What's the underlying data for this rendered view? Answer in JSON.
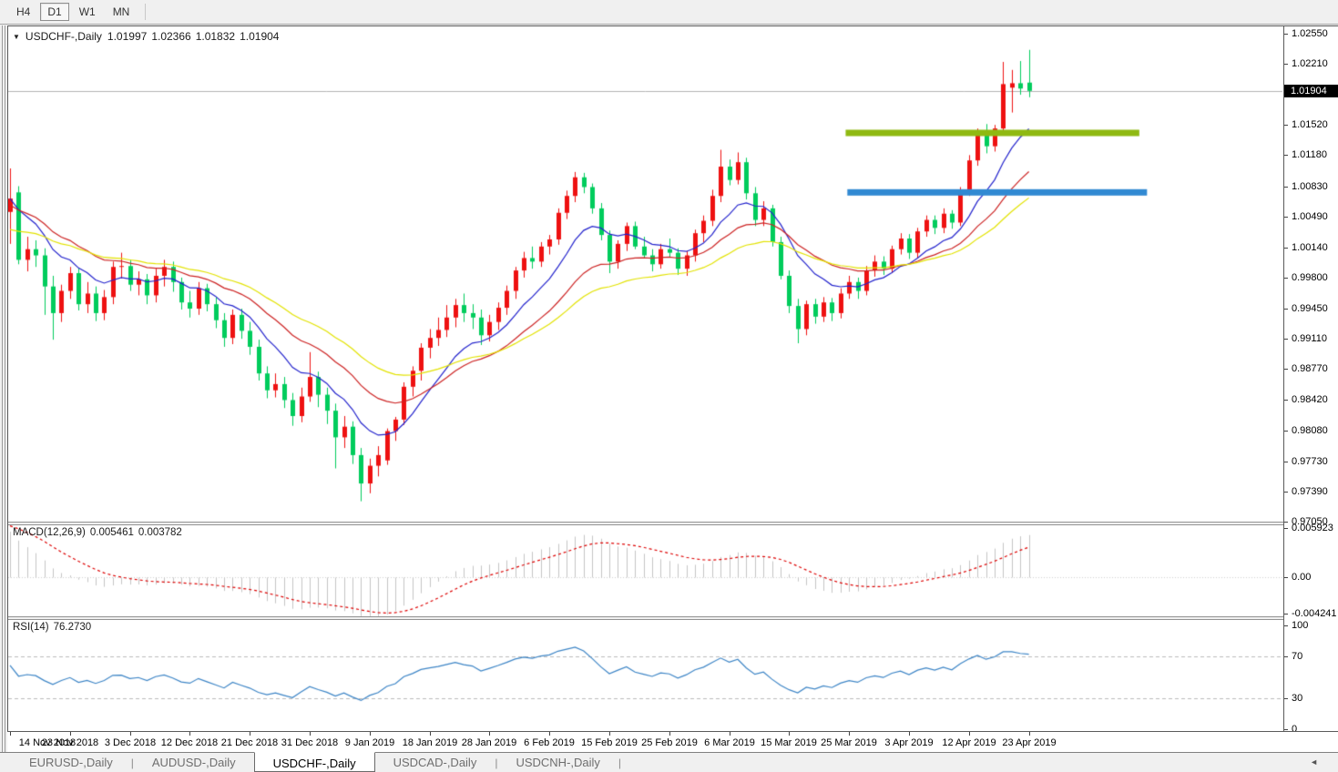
{
  "toolbar": {
    "timeframes": [
      {
        "label": "H4",
        "active": false
      },
      {
        "label": "D1",
        "active": true
      },
      {
        "label": "W1",
        "active": false
      },
      {
        "label": "MN",
        "active": false
      }
    ]
  },
  "icons": {
    "collapse": "▼",
    "tab_scroll_left": "◄"
  },
  "chart_header": {
    "symbol": "USDCHF-,Daily",
    "open": "1.01997",
    "high": "1.02366",
    "low": "1.01832",
    "close": "1.01904"
  },
  "price_axis": {
    "ticks": [
      "1.02550",
      "1.02210",
      "1.01520",
      "1.01180",
      "1.00830",
      "1.00490",
      "1.00140",
      "0.99800",
      "0.99450",
      "0.99110",
      "0.98770",
      "0.98420",
      "0.98080",
      "0.97730",
      "0.97390",
      "0.97050"
    ],
    "current_price": "1.01904"
  },
  "macd_panel": {
    "label": "MACD(12,26,9)",
    "main_value": "0.005461",
    "signal_value": "0.003782",
    "axis": [
      "0.005923",
      "0.00",
      "-0.004241"
    ]
  },
  "rsi_panel": {
    "label": "RSI(14)",
    "value": "76.2730",
    "axis": [
      "100",
      "70",
      "30",
      "0"
    ]
  },
  "date_axis": [
    "14 Nov 2018",
    "23 Nov 2018",
    "3 Dec 2018",
    "12 Dec 2018",
    "21 Dec 2018",
    "31 Dec 2018",
    "9 Jan 2019",
    "18 Jan 2019",
    "28 Jan 2019",
    "6 Feb 2019",
    "15 Feb 2019",
    "25 Feb 2019",
    "6 Mar 2019",
    "15 Mar 2019",
    "25 Mar 2019",
    "3 Apr 2019",
    "12 Apr 2019",
    "23 Apr 2019"
  ],
  "tabs": [
    {
      "label": "EURUSD-,Daily",
      "active": false
    },
    {
      "label": "AUDUSD-,Daily",
      "active": false
    },
    {
      "label": "USDCHF-,Daily",
      "active": true
    },
    {
      "label": "USDCAD-,Daily",
      "active": false
    },
    {
      "label": "USDCNH-,Daily",
      "active": false
    }
  ],
  "colors": {
    "candle_up": "#ee1111",
    "candle_down": "#00cc5c",
    "ma_fast": "#2222cc",
    "ma_mid": "#cc2222",
    "ma_slow": "#e2e200",
    "band_resistance": "#8fb912",
    "band_support": "#3189d2",
    "bid_line": "#b3b3b3",
    "macd_bar": "#c4c4c4",
    "macd_signal": "#dd0000",
    "rsi_line": "#3d85c6",
    "rsi_level": "#bbbbbb",
    "badge_bg": "#000000",
    "badge_text": "#ffffff"
  },
  "chart_data": {
    "type": "candlestick",
    "symbol": "USDCHF",
    "timeframe": "Daily",
    "note_color_convention": "red = up candle, green = down candle",
    "ylim_main": [
      0.9705,
      1.0262
    ],
    "x_tick_every": 7,
    "bid_line_price": 1.01904,
    "hlines": [
      {
        "name": "resistance-line",
        "price": 1.0143,
        "color_key": "band_resistance",
        "from_index": 97.6,
        "to_index": 131.9,
        "thickness": 7
      },
      {
        "name": "support-line",
        "price": 1.0076,
        "color_key": "band_support",
        "from_index": 97.8,
        "to_index": 132.8,
        "thickness": 7
      }
    ],
    "overlays": [
      {
        "name": "ma-fast",
        "method": "ema",
        "period": 10,
        "seed_offset": 0.0,
        "color_key": "ma_fast"
      },
      {
        "name": "ma-mid",
        "method": "ema",
        "period": 21,
        "seed_offset": -0.0008,
        "color_key": "ma_mid"
      },
      {
        "name": "ma-slow",
        "method": "ema",
        "period": 34,
        "seed_offset": -0.0037,
        "color_key": "ma_slow"
      }
    ],
    "macd": {
      "fast": 12,
      "slow": 26,
      "signal": 9,
      "fast_seed_offset": 0.0015,
      "slow_seed_offset": -0.0045,
      "signal_seed": 0.0063,
      "range": [
        -0.0046,
        0.0062
      ],
      "current_main": 0.005461,
      "current_signal": 0.003782
    },
    "rsi": {
      "period": 14,
      "seed_gain": 0.0016,
      "seed_loss": 0.001,
      "levels": [
        70,
        30
      ],
      "range": [
        0,
        100
      ],
      "current": 76.273
    },
    "candles": [
      [
        1.0054,
        1.0103,
        1.0018,
        1.0069
      ],
      [
        1.0076,
        1.0083,
        0.9995,
        1.0
      ],
      [
        1.0,
        1.0026,
        0.9987,
        1.0012
      ],
      [
        1.0012,
        1.0022,
        0.9992,
        1.0005
      ],
      [
        1.0005,
        1.0013,
        0.9938,
        0.997
      ],
      [
        0.997,
        0.9982,
        0.991,
        0.994
      ],
      [
        0.994,
        0.9972,
        0.993,
        0.9965
      ],
      [
        0.9965,
        0.9992,
        0.9956,
        0.9985
      ],
      [
        0.9985,
        0.999,
        0.9943,
        0.995
      ],
      [
        0.995,
        0.9975,
        0.994,
        0.9962
      ],
      [
        0.9962,
        0.997,
        0.9931,
        0.994
      ],
      [
        0.994,
        0.9966,
        0.9932,
        0.9958
      ],
      [
        0.9958,
        0.9998,
        0.995,
        0.9992
      ],
      [
        0.9992,
        1.0008,
        0.9979,
        0.9993
      ],
      [
        0.9993,
        1.0,
        0.9965,
        0.9972
      ],
      [
        0.9972,
        0.9987,
        0.996,
        0.9978
      ],
      [
        0.9978,
        0.9984,
        0.995,
        0.996
      ],
      [
        0.996,
        0.999,
        0.9952,
        0.9982
      ],
      [
        0.9982,
        1.0,
        0.997,
        0.9992
      ],
      [
        0.9992,
        0.9998,
        0.9964,
        0.9975
      ],
      [
        0.9975,
        0.998,
        0.9944,
        0.9952
      ],
      [
        0.9952,
        0.9965,
        0.9935,
        0.9945
      ],
      [
        0.9945,
        0.9975,
        0.9938,
        0.9968
      ],
      [
        0.9968,
        0.9973,
        0.9942,
        0.995
      ],
      [
        0.995,
        0.9958,
        0.9923,
        0.9932
      ],
      [
        0.9932,
        0.994,
        0.9902,
        0.9912
      ],
      [
        0.9912,
        0.9944,
        0.9905,
        0.9938
      ],
      [
        0.9938,
        0.9945,
        0.9911,
        0.992
      ],
      [
        0.992,
        0.993,
        0.9893,
        0.9902
      ],
      [
        0.9902,
        0.991,
        0.9864,
        0.9872
      ],
      [
        0.9872,
        0.988,
        0.9844,
        0.9853
      ],
      [
        0.9853,
        0.9872,
        0.9845,
        0.986
      ],
      [
        0.986,
        0.9868,
        0.9833,
        0.9842
      ],
      [
        0.9842,
        0.985,
        0.9813,
        0.9824
      ],
      [
        0.9824,
        0.9856,
        0.9817,
        0.9846
      ],
      [
        0.9846,
        0.9896,
        0.984,
        0.9868
      ],
      [
        0.9868,
        0.9874,
        0.9834,
        0.9848
      ],
      [
        0.9848,
        0.9856,
        0.9815,
        0.983
      ],
      [
        0.983,
        0.9838,
        0.9765,
        0.98
      ],
      [
        0.98,
        0.9824,
        0.9788,
        0.9812
      ],
      [
        0.9812,
        0.9818,
        0.977,
        0.978
      ],
      [
        0.978,
        0.9788,
        0.9728,
        0.9748
      ],
      [
        0.9748,
        0.9776,
        0.9737,
        0.9768
      ],
      [
        0.9768,
        0.979,
        0.9756,
        0.978
      ],
      [
        0.9774,
        0.981,
        0.9769,
        0.9807
      ],
      [
        0.9807,
        0.9823,
        0.9796,
        0.982
      ],
      [
        0.982,
        0.9862,
        0.9814,
        0.9857
      ],
      [
        0.9857,
        0.988,
        0.9846,
        0.9875
      ],
      [
        0.9875,
        0.9906,
        0.9864,
        0.9901
      ],
      [
        0.9901,
        0.9922,
        0.9889,
        0.9912
      ],
      [
        0.9912,
        0.9935,
        0.9903,
        0.9921
      ],
      [
        0.9921,
        0.9949,
        0.9913,
        0.9935
      ],
      [
        0.9935,
        0.9956,
        0.9924,
        0.9949
      ],
      [
        0.9949,
        0.9962,
        0.993,
        0.994
      ],
      [
        0.994,
        0.995,
        0.9922,
        0.9935
      ],
      [
        0.9935,
        0.9944,
        0.9904,
        0.9915
      ],
      [
        0.9915,
        0.9938,
        0.9908,
        0.993
      ],
      [
        0.993,
        0.9952,
        0.9921,
        0.9946
      ],
      [
        0.9946,
        0.9971,
        0.9938,
        0.9965
      ],
      [
        0.9965,
        0.9992,
        0.9956,
        0.9988
      ],
      [
        0.9988,
        1.0009,
        0.998,
        1.0002
      ],
      [
        1.0002,
        1.0015,
        0.999,
        0.9998
      ],
      [
        0.9998,
        1.002,
        0.9992,
        1.0015
      ],
      [
        1.0015,
        1.0028,
        1.0006,
        1.0023
      ],
      [
        1.0023,
        1.0058,
        1.0017,
        1.0053
      ],
      [
        1.0053,
        1.0078,
        1.0046,
        1.0072
      ],
      [
        1.0072,
        1.0099,
        1.0065,
        1.0093
      ],
      [
        1.0093,
        1.0098,
        1.0075,
        1.0082
      ],
      [
        1.0082,
        1.0086,
        1.0052,
        1.0058
      ],
      [
        1.0058,
        1.0064,
        1.0022,
        1.0028
      ],
      [
        1.0028,
        1.0033,
        0.9985,
        0.9998
      ],
      [
        0.9998,
        1.0022,
        0.999,
        1.0018
      ],
      [
        1.0018,
        1.0042,
        1.001,
        1.0038
      ],
      [
        1.0038,
        1.0043,
        1.0012,
        1.0015
      ],
      [
        1.0015,
        1.0026,
        1.0002,
        1.0005
      ],
      [
        1.0005,
        1.0012,
        0.9987,
        0.9995
      ],
      [
        0.9995,
        1.0018,
        0.999,
        1.0012
      ],
      [
        1.0012,
        1.0024,
        1.0003,
        1.0008
      ],
      [
        1.0008,
        1.0013,
        0.9983,
        0.999
      ],
      [
        0.999,
        1.001,
        0.9982,
        1.0005
      ],
      [
        1.0005,
        1.0034,
        0.9998,
        1.003
      ],
      [
        1.003,
        1.005,
        1.002,
        1.0044
      ],
      [
        1.0044,
        1.0079,
        1.0038,
        1.0072
      ],
      [
        1.0072,
        1.0124,
        1.0065,
        1.0105
      ],
      [
        1.0105,
        1.0113,
        1.0084,
        1.009
      ],
      [
        1.009,
        1.0121,
        1.0085,
        1.011
      ],
      [
        1.011,
        1.0115,
        1.0068,
        1.0075
      ],
      [
        1.0075,
        1.0082,
        1.0038,
        1.0045
      ],
      [
        1.0045,
        1.0066,
        1.0038,
        1.0058
      ],
      [
        1.0058,
        1.0062,
        1.0015,
        1.002
      ],
      [
        1.002,
        1.0026,
        0.9978,
        0.9982
      ],
      [
        0.9982,
        0.9988,
        0.994,
        0.9948
      ],
      [
        0.9948,
        0.9956,
        0.9906,
        0.9922
      ],
      [
        0.9922,
        0.9954,
        0.9915,
        0.995
      ],
      [
        0.995,
        0.9956,
        0.9928,
        0.9936
      ],
      [
        0.9936,
        0.9958,
        0.993,
        0.9952
      ],
      [
        0.9952,
        0.9957,
        0.9931,
        0.994
      ],
      [
        0.994,
        0.9968,
        0.9934,
        0.9962
      ],
      [
        0.9962,
        0.9982,
        0.9956,
        0.9975
      ],
      [
        0.9975,
        0.998,
        0.9956,
        0.9965
      ],
      [
        0.9965,
        0.9993,
        0.996,
        0.9988
      ],
      [
        0.9988,
        1.0005,
        0.9981,
        0.9998
      ],
      [
        0.9998,
        1.0004,
        0.9983,
        0.999
      ],
      [
        0.999,
        1.0016,
        0.9985,
        1.0012
      ],
      [
        1.0012,
        1.003,
        1.0006,
        1.0024
      ],
      [
        1.0024,
        1.0029,
        1.0001,
        1.0008
      ],
      [
        1.0008,
        1.0036,
        1.0002,
        1.0032
      ],
      [
        1.0032,
        1.005,
        1.0026,
        1.0045
      ],
      [
        1.0045,
        1.005,
        1.0029,
        1.0036
      ],
      [
        1.0036,
        1.0058,
        1.003,
        1.0052
      ],
      [
        1.0052,
        1.0056,
        1.0035,
        1.0042
      ],
      [
        1.0042,
        1.0082,
        1.0038,
        1.0078
      ],
      [
        1.0078,
        1.0118,
        1.0072,
        1.0112
      ],
      [
        1.0112,
        1.0148,
        1.0106,
        1.0143
      ],
      [
        1.0143,
        1.0153,
        1.012,
        1.0128
      ],
      [
        1.0128,
        1.0152,
        1.0122,
        1.0148
      ],
      [
        1.0148,
        1.0223,
        1.0143,
        1.0198
      ],
      [
        1.0194,
        1.0214,
        1.0166,
        1.0199
      ],
      [
        1.0199,
        1.0224,
        1.0186,
        1.0193
      ],
      [
        1.01997,
        1.02366,
        1.01832,
        1.01904
      ]
    ]
  }
}
